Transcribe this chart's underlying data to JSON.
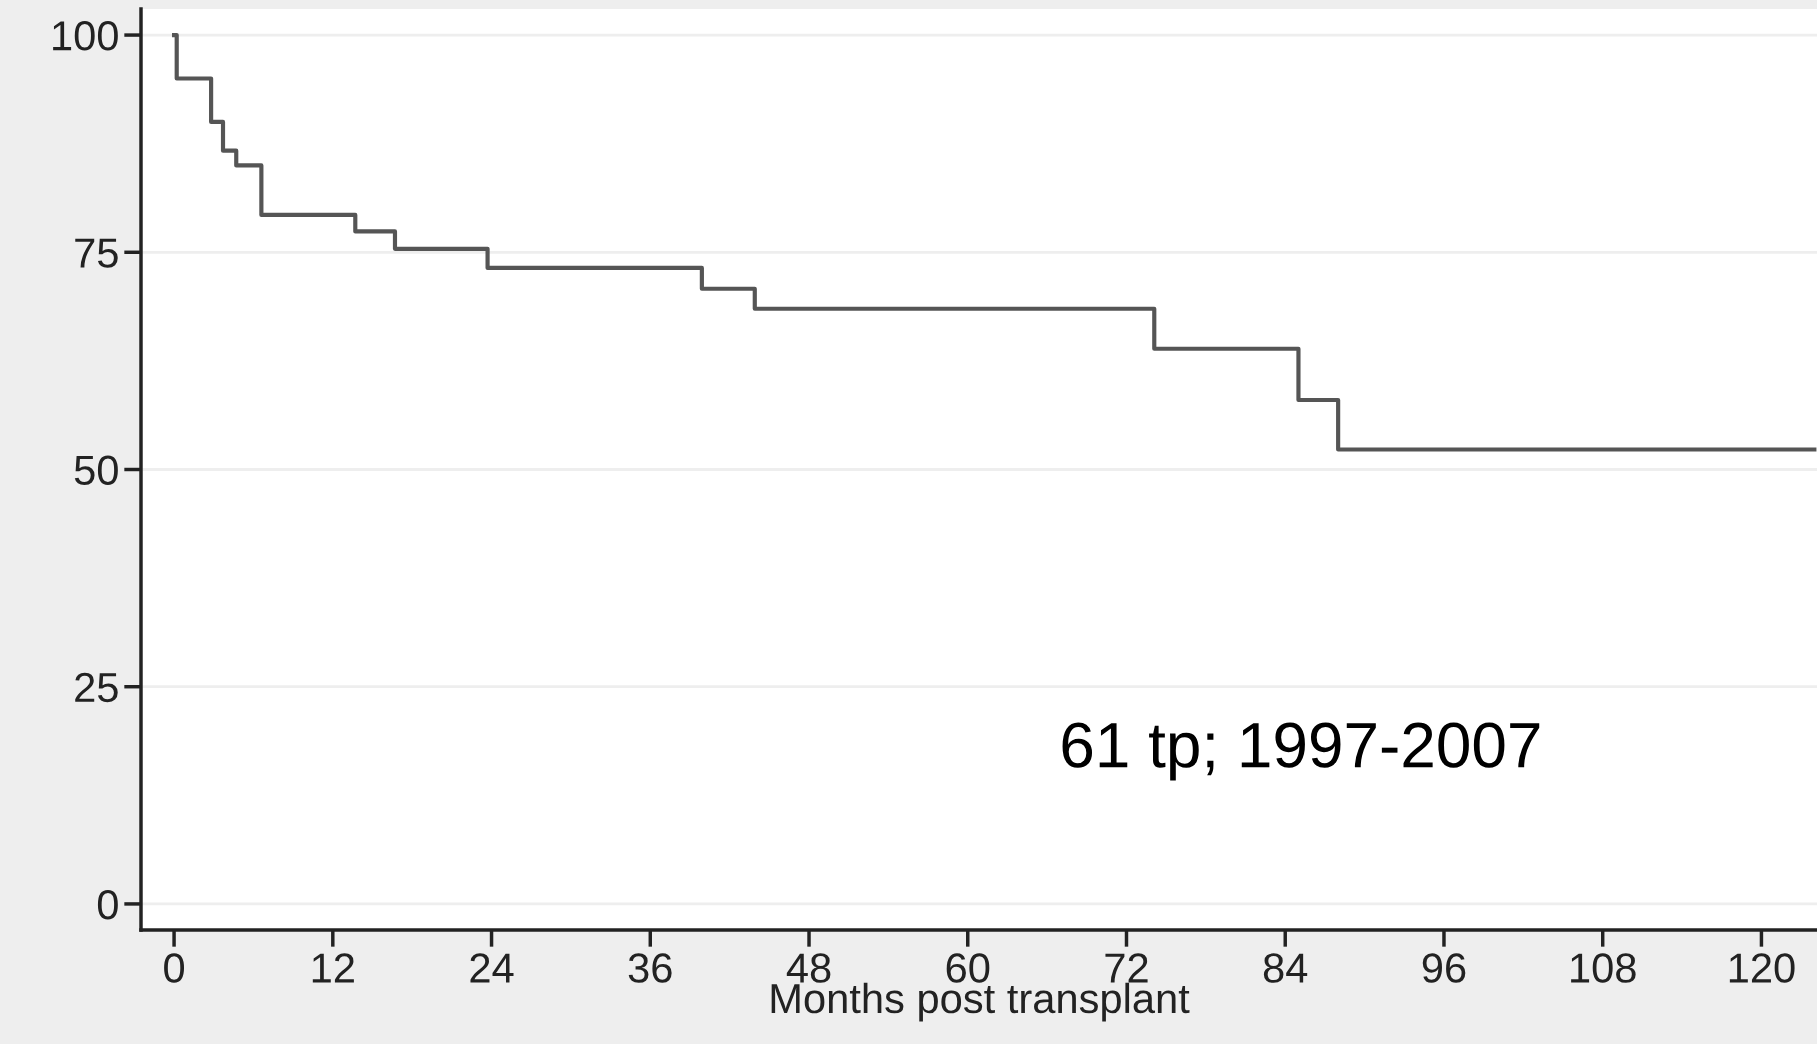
{
  "chart_data": {
    "type": "step",
    "xlabel": "Months post transplant",
    "x": [
      0,
      0.2,
      2.8,
      3.7,
      4.7,
      6.6,
      13.7,
      16.7,
      23.7,
      39.9,
      43.9,
      74.1,
      85.0,
      88.0,
      124
    ],
    "values": [
      100,
      95,
      90,
      86.7,
      85,
      79.3,
      77.4,
      75.4,
      73.2,
      70.8,
      68.5,
      63.9,
      58,
      52.3,
      52.3
    ],
    "color": "#555555",
    "xlim": [
      -2.5,
      124.2
    ],
    "ylim": [
      -3,
      103
    ],
    "xticks": [
      0,
      12,
      24,
      36,
      48,
      60,
      72,
      84,
      96,
      108,
      120
    ],
    "yticks": [
      0,
      25,
      50,
      75,
      100
    ],
    "grid": "y",
    "annotations": [
      "61 tp; 1997-2007"
    ]
  }
}
